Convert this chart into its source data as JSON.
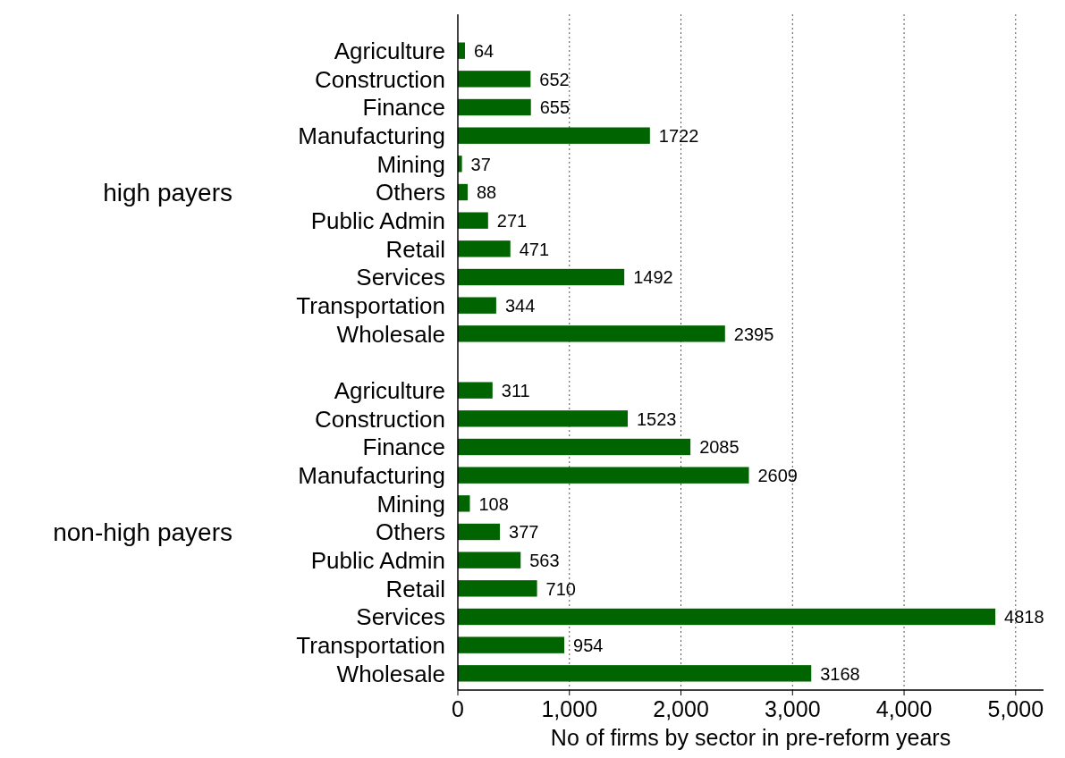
{
  "chart_data": {
    "type": "bar",
    "orientation": "horizontal",
    "categories": [
      "Agriculture",
      "Construction",
      "Finance",
      "Manufacturing",
      "Mining",
      "Others",
      "Public Admin",
      "Retail",
      "Services",
      "Transportation",
      "Wholesale",
      null,
      "Agriculture",
      "Construction",
      "Finance",
      "Manufacturing",
      "Mining",
      "Others",
      "Public Admin",
      "Retail",
      "Services",
      "Transportation",
      "Wholesale"
    ],
    "values": [
      64,
      652,
      655,
      1722,
      37,
      88,
      271,
      471,
      1492,
      344,
      2395,
      null,
      311,
      1523,
      2085,
      2609,
      108,
      377,
      563,
      710,
      4818,
      954,
      3168
    ],
    "color": "#006400",
    "xlim": [
      0,
      5250
    ],
    "xticks": [
      {
        "value": 0,
        "label": "0"
      },
      {
        "value": 1000,
        "label": "1,000"
      },
      {
        "value": 2000,
        "label": "2,000"
      },
      {
        "value": 3000,
        "label": "3,000"
      },
      {
        "value": 4000,
        "label": "4,000"
      },
      {
        "value": 5000,
        "label": "5,000"
      }
    ],
    "xlabel": "No of firms by sector in pre-reform years",
    "grid": "x",
    "data_labels": true,
    "annotations": [
      "high payers",
      "non-high payers"
    ]
  }
}
